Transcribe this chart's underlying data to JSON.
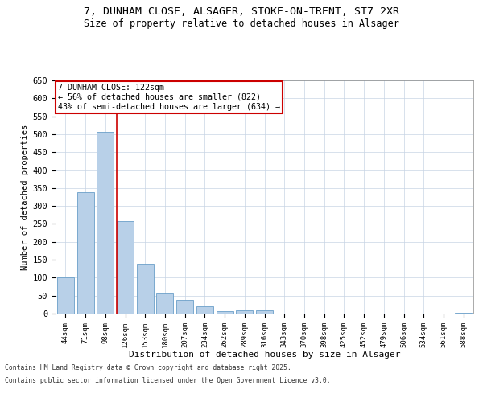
{
  "title_line1": "7, DUNHAM CLOSE, ALSAGER, STOKE-ON-TRENT, ST7 2XR",
  "title_line2": "Size of property relative to detached houses in Alsager",
  "xlabel": "Distribution of detached houses by size in Alsager",
  "ylabel": "Number of detached properties",
  "categories": [
    "44sqm",
    "71sqm",
    "98sqm",
    "126sqm",
    "153sqm",
    "180sqm",
    "207sqm",
    "234sqm",
    "262sqm",
    "289sqm",
    "316sqm",
    "343sqm",
    "370sqm",
    "398sqm",
    "425sqm",
    "452sqm",
    "479sqm",
    "506sqm",
    "534sqm",
    "561sqm",
    "588sqm"
  ],
  "values": [
    100,
    338,
    507,
    257,
    140,
    55,
    37,
    20,
    6,
    10,
    10,
    0,
    0,
    0,
    0,
    0,
    0,
    0,
    0,
    0,
    3
  ],
  "bar_color": "#b8d0e8",
  "bar_edge_color": "#6a9fc8",
  "vline_color": "#cc0000",
  "vline_x_index": 2.57,
  "annotation_text": "7 DUNHAM CLOSE: 122sqm\n← 56% of detached houses are smaller (822)\n43% of semi-detached houses are larger (634) →",
  "annotation_box_color": "#ffffff",
  "annotation_box_edge_color": "#cc0000",
  "ylim": [
    0,
    650
  ],
  "yticks": [
    0,
    50,
    100,
    150,
    200,
    250,
    300,
    350,
    400,
    450,
    500,
    550,
    600,
    650
  ],
  "footnote_line1": "Contains HM Land Registry data © Crown copyright and database right 2025.",
  "footnote_line2": "Contains public sector information licensed under the Open Government Licence v3.0.",
  "background_color": "#ffffff",
  "grid_color": "#c8d4e4"
}
